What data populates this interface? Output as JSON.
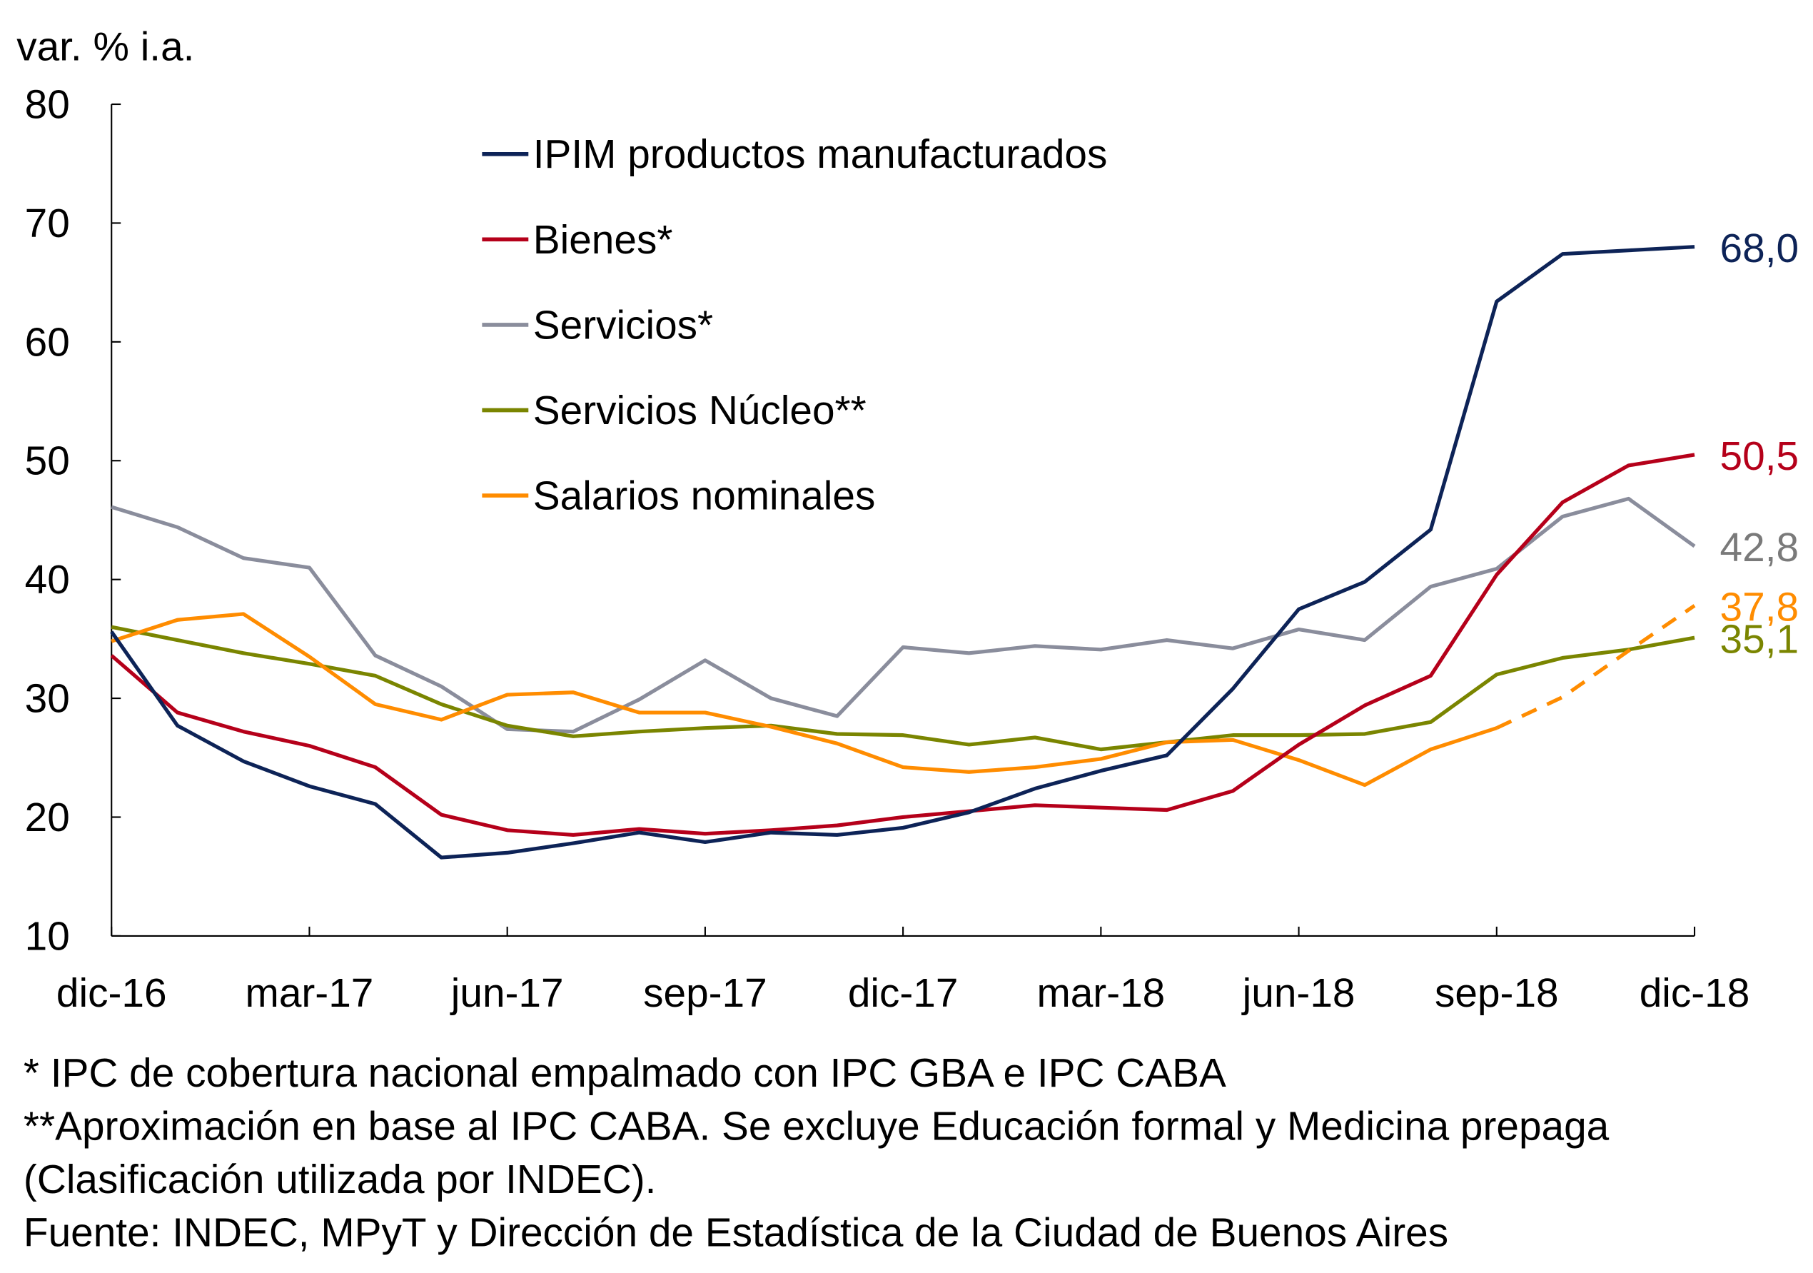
{
  "chart_data": {
    "type": "line",
    "ylabel": "var. % i.a.",
    "ylim": [
      10,
      80
    ],
    "yticks": [
      10,
      20,
      30,
      40,
      50,
      60,
      70,
      80
    ],
    "grid": false,
    "legend_position": "top-center",
    "x": [
      "dic-16",
      "ene-17",
      "feb-17",
      "mar-17",
      "abr-17",
      "may-17",
      "jun-17",
      "jul-17",
      "ago-17",
      "sep-17",
      "oct-17",
      "nov-17",
      "dic-17",
      "ene-18",
      "feb-18",
      "mar-18",
      "abr-18",
      "may-18",
      "jun-18",
      "jul-18",
      "ago-18",
      "sep-18",
      "oct-18",
      "nov-18",
      "dic-18"
    ],
    "xtick_labels": [
      "dic-16",
      "mar-17",
      "jun-17",
      "sep-17",
      "dic-17",
      "mar-18",
      "jun-18",
      "sep-18",
      "dic-18"
    ],
    "series": [
      {
        "name": "IPIM productos manufacturados",
        "color": "#0d2357",
        "end_label": "68,0",
        "values": [
          35.6,
          27.7,
          24.7,
          22.6,
          21.1,
          16.6,
          17.0,
          17.8,
          18.7,
          17.9,
          18.7,
          18.5,
          19.1,
          20.4,
          22.4,
          23.9,
          25.2,
          30.8,
          37.5,
          39.8,
          44.2,
          63.4,
          67.4,
          67.7,
          68.0
        ]
      },
      {
        "name": "Bienes*",
        "color": "#b5001a",
        "end_label": "50,5",
        "values": [
          33.6,
          28.8,
          27.2,
          26.0,
          24.2,
          20.2,
          18.9,
          18.5,
          19.0,
          18.6,
          18.9,
          19.3,
          20.0,
          20.5,
          21.0,
          20.8,
          20.6,
          22.2,
          26.1,
          29.4,
          31.9,
          40.4,
          46.5,
          49.6,
          50.5
        ]
      },
      {
        "name": "Servicios*",
        "color": "#8a8d9c",
        "end_label": "42,8",
        "label_color": "#7a7a7a",
        "values": [
          46.1,
          44.4,
          41.8,
          41.0,
          33.6,
          31.0,
          27.4,
          27.2,
          29.9,
          33.2,
          30.0,
          28.5,
          34.3,
          33.8,
          34.4,
          34.1,
          34.9,
          34.2,
          35.8,
          34.9,
          39.4,
          40.9,
          45.3,
          46.8,
          42.8
        ]
      },
      {
        "name": "Servicios Núcleo**",
        "color": "#7a8500",
        "end_label": "35,1",
        "values": [
          36.0,
          34.9,
          33.8,
          32.9,
          31.9,
          29.5,
          27.7,
          26.8,
          27.2,
          27.5,
          27.7,
          27.0,
          26.9,
          26.1,
          26.7,
          25.7,
          26.3,
          26.9,
          26.9,
          27.0,
          28.0,
          32.0,
          33.4,
          34.1,
          35.1
        ]
      },
      {
        "name": "Salarios nominales",
        "color": "#ff8c00",
        "end_label": "37,8",
        "dashed_from": "oct-18",
        "values": [
          34.8,
          36.6,
          37.1,
          33.5,
          29.5,
          28.2,
          30.3,
          30.5,
          28.8,
          28.8,
          27.6,
          26.2,
          24.2,
          23.8,
          24.2,
          24.9,
          26.3,
          26.5,
          24.8,
          22.7,
          25.7,
          27.5,
          30.1,
          34.0,
          37.8
        ]
      }
    ]
  },
  "footnotes": [
    "* IPC de cobertura nacional empalmado con IPC GBA e IPC CABA",
    "**Aproximación en base al IPC CABA. Se excluye Educación formal y Medicina prepaga",
    "(Clasificación utilizada por INDEC).",
    "Fuente: INDEC, MPyT y Dirección de Estadística de la Ciudad de Buenos Aires"
  ]
}
